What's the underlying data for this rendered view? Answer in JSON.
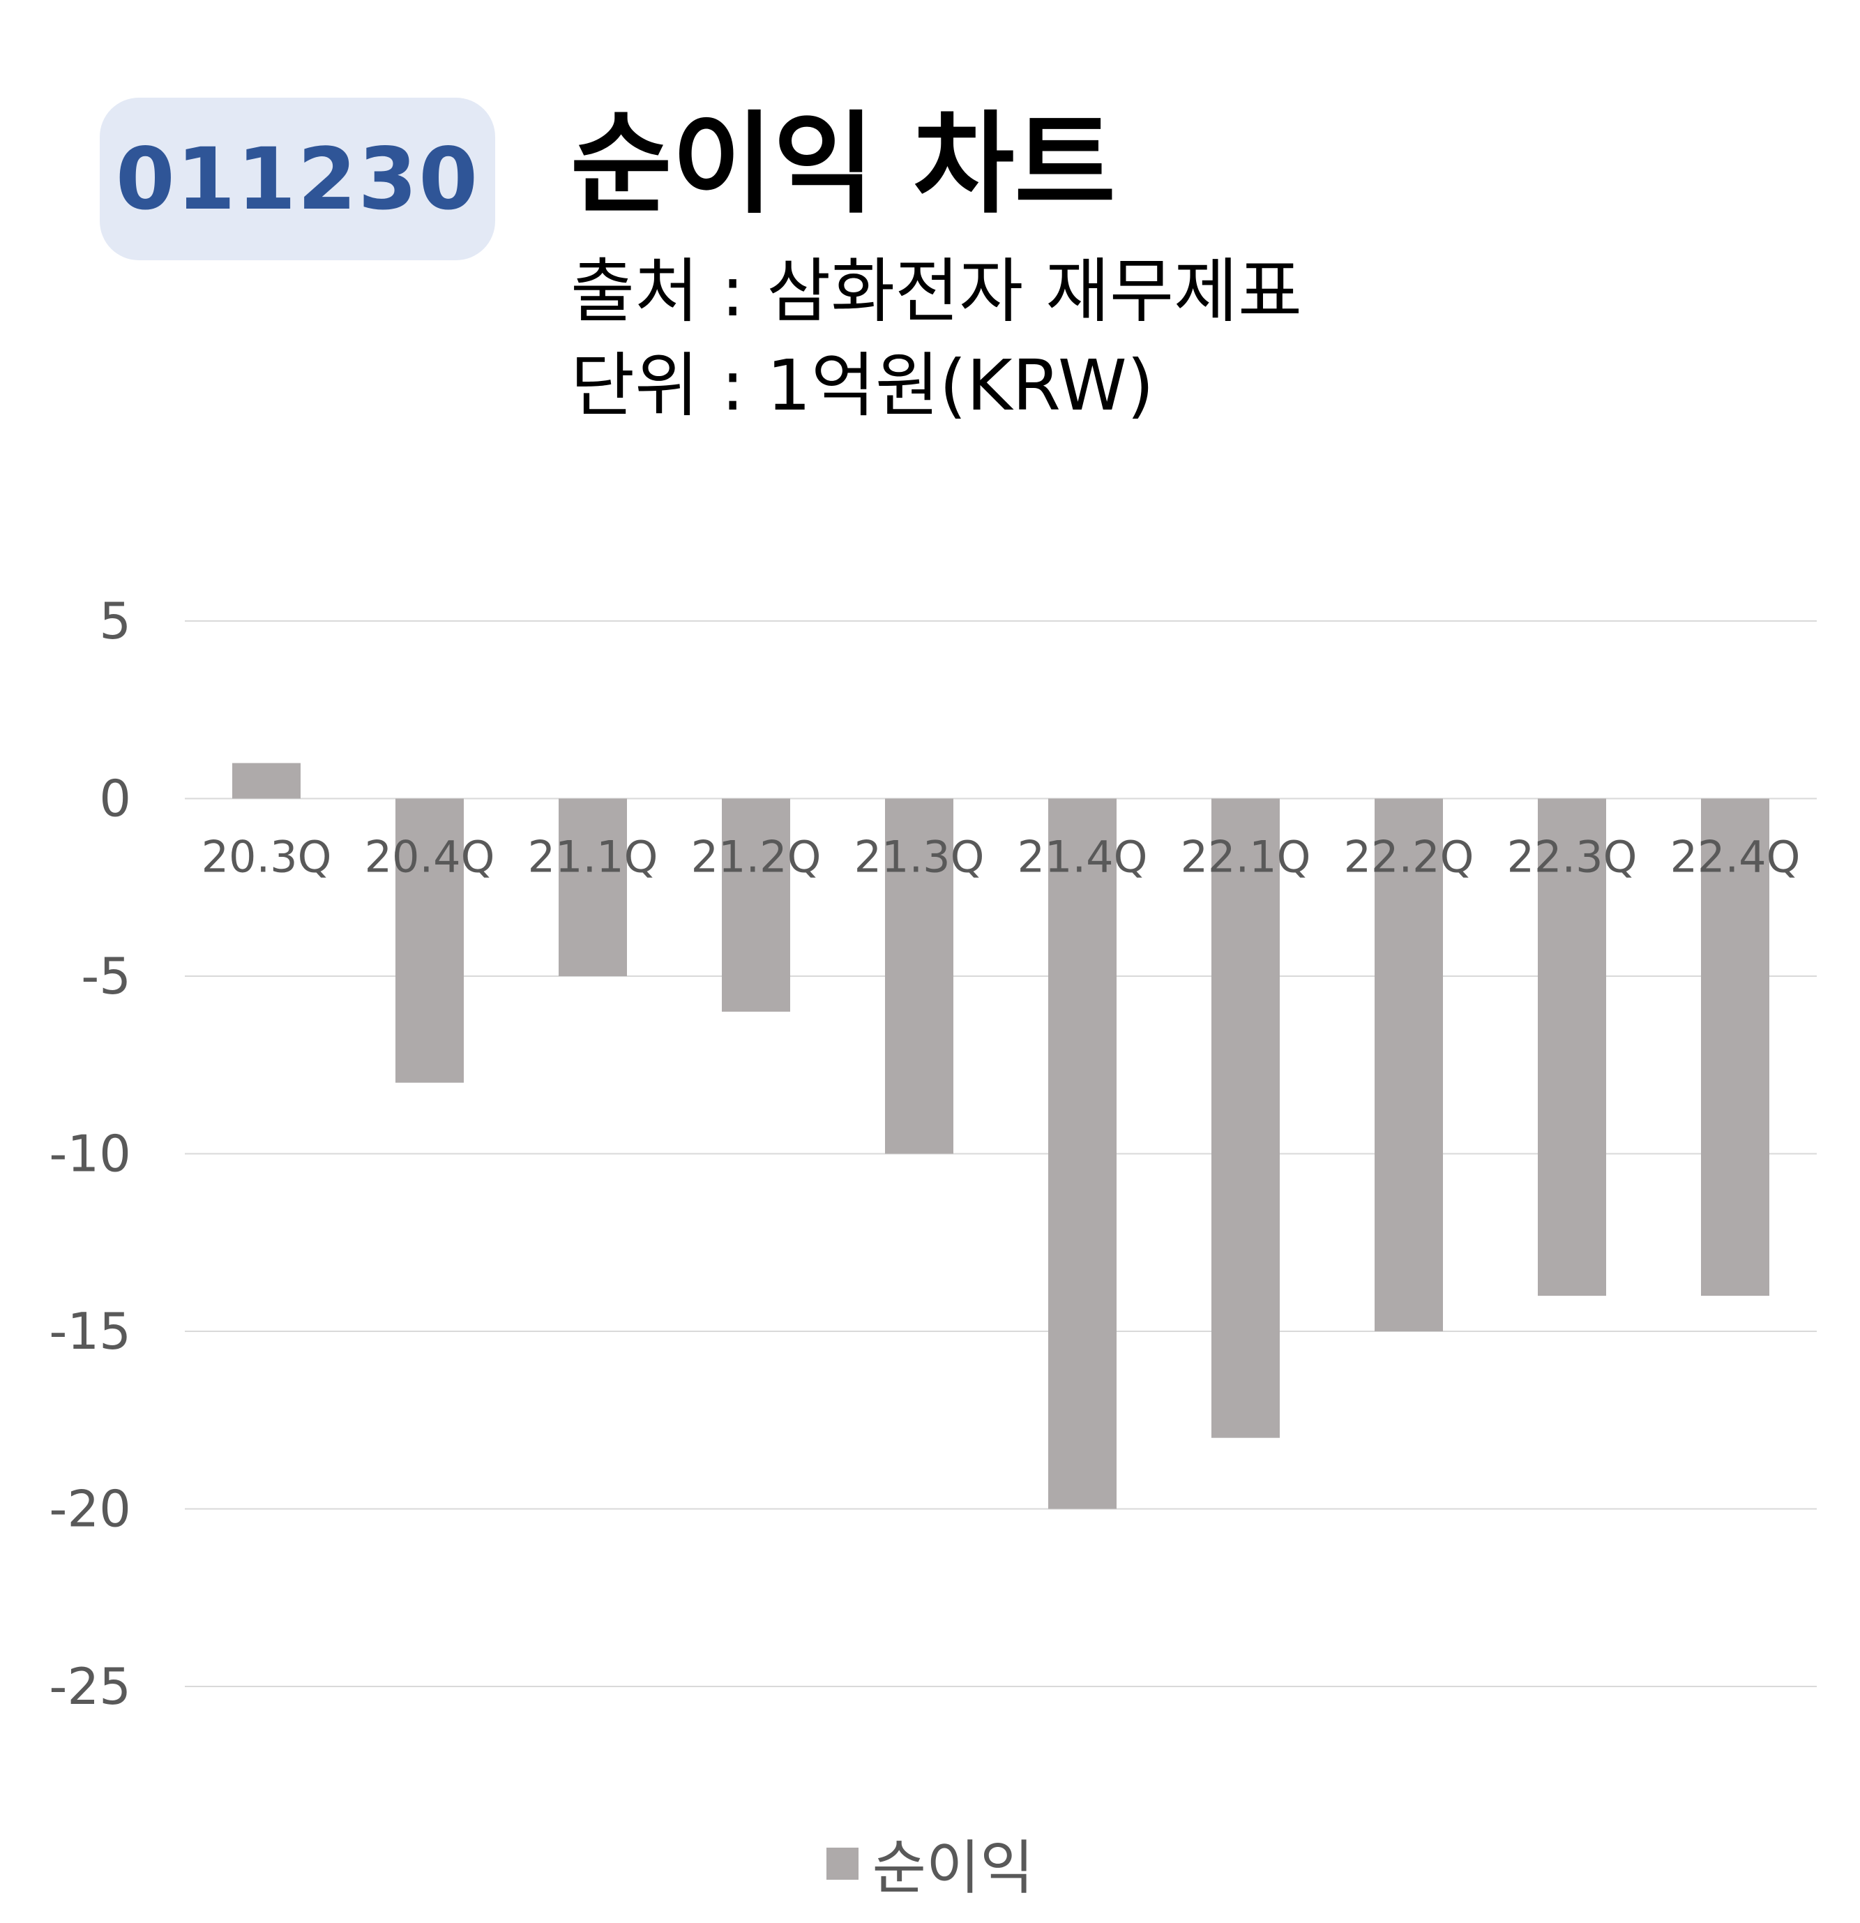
{
  "ticker": "011230",
  "title": "순이익 차트",
  "source": "출처 : 삼화전자 재무제표",
  "unit": "단위 : 1억원(KRW)",
  "colors": {
    "bar": "#aeaaaa",
    "grid": "#d9d9d9",
    "axis_text": "#595959",
    "badge_bg": "#e3e9f5",
    "badge_text": "#2f5597"
  },
  "chart_data": {
    "type": "bar",
    "categories": [
      "20.3Q",
      "20.4Q",
      "21.1Q",
      "21.2Q",
      "21.3Q",
      "21.4Q",
      "22.1Q",
      "22.2Q",
      "22.3Q",
      "22.4Q"
    ],
    "series": [
      {
        "name": "순이익",
        "values": [
          1,
          -8,
          -5,
          -6,
          -10,
          -20,
          -18,
          -15,
          -14,
          -14
        ]
      }
    ],
    "yticks": [
      5,
      0,
      -5,
      -10,
      -15,
      -20,
      -25
    ],
    "ylim": [
      -25,
      5
    ],
    "grid": true,
    "legend_position": "bottom"
  }
}
